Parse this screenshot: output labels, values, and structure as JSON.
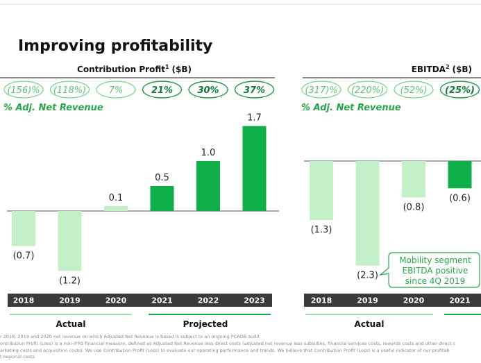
{
  "page": {
    "title": "Improving profitability"
  },
  "colors": {
    "actual_bar": "#c4f0c9",
    "projected_bar": "#0fb04a",
    "pill_light_border": "#6fd487",
    "pill_light_text": "#5cbf73",
    "pill_dark_border": "#1d9a44",
    "pill_dark_text": "#0d7a34",
    "year_band": "#3a3a3a",
    "accent_green": "#27a64a"
  },
  "contribution_panel": {
    "header": "Contribution Profit",
    "header_sup": "1",
    "header_unit": "($B)",
    "pct_label": "% Adj. Net Revenue",
    "pct_badges": [
      "(156)%",
      "(118%)",
      "7%",
      "21%",
      "30%",
      "37%"
    ],
    "actual_label": "Actual",
    "projected_label": "Projected"
  },
  "ebitda_panel": {
    "header": "EBITDA",
    "header_sup": "2",
    "header_unit": "($B)",
    "pct_label": "% Adj. Net Revenue",
    "pct_badges": [
      "(317)%",
      "(220%)",
      "(52%)",
      "(25%)"
    ],
    "actual_label": "Actual",
    "callout": [
      "Mobility segment",
      "EBITDA positive",
      "since 4Q 2019"
    ]
  },
  "chart_data": [
    {
      "type": "bar",
      "title": "Contribution Profit ($B)",
      "categories": [
        "2018",
        "2019",
        "2020",
        "2021",
        "2022",
        "2023"
      ],
      "values": [
        -0.7,
        -1.2,
        0.1,
        0.5,
        1.0,
        1.7
      ],
      "value_labels": [
        "(0.7)",
        "(1.2)",
        "0.1",
        "0.5",
        "1.0",
        "1.7"
      ],
      "groups": [
        "actual",
        "actual",
        "actual",
        "projected",
        "projected",
        "projected"
      ],
      "pct_adj_net_revenue": [
        "(156)%",
        "(118%)",
        "7%",
        "21%",
        "30%",
        "37%"
      ],
      "ylim": [
        -1.5,
        2.0
      ],
      "grid": false
    },
    {
      "type": "bar",
      "title": "EBITDA ($B)",
      "categories": [
        "2018",
        "2019",
        "2020",
        "2021"
      ],
      "values": [
        -1.3,
        -2.3,
        -0.8,
        -0.6
      ],
      "value_labels": [
        "(1.3)",
        "(2.3)",
        "(0.8)",
        "(0.6)"
      ],
      "groups": [
        "actual",
        "actual",
        "actual",
        "projected"
      ],
      "pct_adj_net_revenue": [
        "(317)%",
        "(220%)",
        "(52%)",
        "(25%)"
      ],
      "ylim": [
        -2.5,
        0.5
      ],
      "grid": false
    }
  ],
  "footnotes": [
    "r 2018, 2019 and 2020 net revenue on which Adjusted Net Revenue is based is subject to an ongoing PCAOB audit",
    "ontribution Profit (Loss) is a non-IFRS financial measure, defined as Adjusted Net Revenue less direct costs (adjusted net revenue less subsidies, financial services costs, rewards costs and other direct c",
    "arketing costs and acquisition costs). We use Contribution Profit (Loss) to evaluate our operating performance and trends. We believe that Contribution Profit (Loss) is a useful indicator of our profitab",
    "t regional costs"
  ]
}
